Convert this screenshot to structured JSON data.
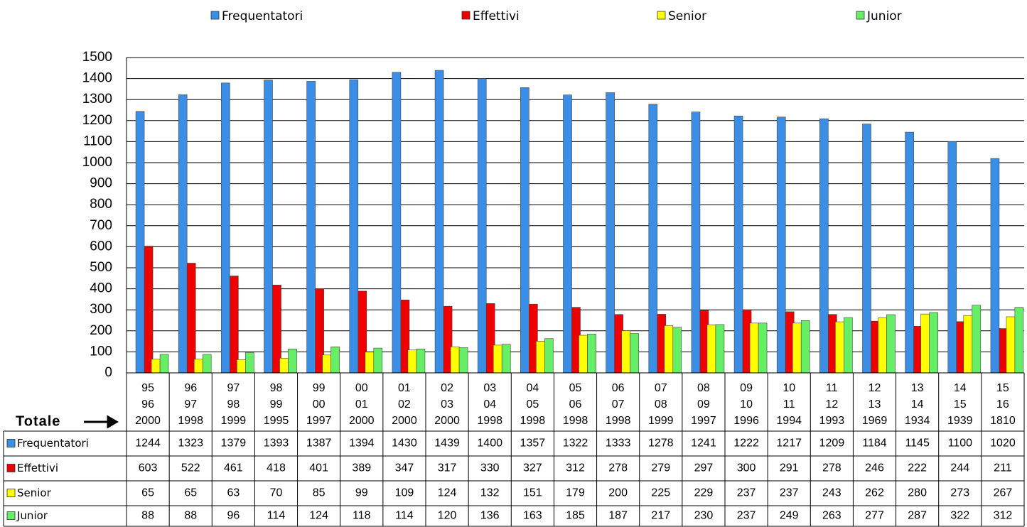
{
  "chart_data": {
    "type": "bar",
    "categories": [
      [
        "95",
        "96"
      ],
      [
        "96",
        "97"
      ],
      [
        "97",
        "98"
      ],
      [
        "98",
        "99"
      ],
      [
        "99",
        "00"
      ],
      [
        "00",
        "01"
      ],
      [
        "01",
        "02"
      ],
      [
        "02",
        "03"
      ],
      [
        "03",
        "04"
      ],
      [
        "04",
        "05"
      ],
      [
        "05",
        "06"
      ],
      [
        "06",
        "07"
      ],
      [
        "07",
        "08"
      ],
      [
        "08",
        "09"
      ],
      [
        "09",
        "10"
      ],
      [
        "10",
        "11"
      ],
      [
        "11",
        "12"
      ],
      [
        "12",
        "13"
      ],
      [
        "13",
        "14"
      ],
      [
        "14",
        "15"
      ],
      [
        "15",
        "16"
      ]
    ],
    "totals_label": "Totale",
    "totals": [
      2000,
      1998,
      1999,
      1995,
      1997,
      2000,
      2000,
      2000,
      1998,
      1998,
      1998,
      1998,
      1999,
      1997,
      1996,
      1994,
      1993,
      1969,
      1934,
      1939,
      1810
    ],
    "series": [
      {
        "name": "Frequentatori",
        "color": "#3a8ee6",
        "values": [
          1244,
          1323,
          1379,
          1393,
          1387,
          1394,
          1430,
          1439,
          1400,
          1357,
          1322,
          1333,
          1278,
          1241,
          1222,
          1217,
          1209,
          1184,
          1145,
          1100,
          1020
        ]
      },
      {
        "name": "Effettivi",
        "color": "#ee0000",
        "values": [
          603,
          522,
          461,
          418,
          401,
          389,
          347,
          317,
          330,
          327,
          312,
          278,
          279,
          297,
          300,
          291,
          278,
          246,
          222,
          244,
          211
        ]
      },
      {
        "name": "Senior",
        "color": "#ffff00",
        "values": [
          65,
          65,
          63,
          70,
          85,
          99,
          109,
          124,
          132,
          151,
          179,
          200,
          225,
          229,
          237,
          237,
          243,
          262,
          280,
          273,
          267
        ]
      },
      {
        "name": "Junior",
        "color": "#66ee66",
        "values": [
          88,
          88,
          96,
          114,
          124,
          118,
          114,
          120,
          136,
          163,
          185,
          187,
          217,
          230,
          237,
          249,
          263,
          277,
          287,
          322,
          312
        ]
      }
    ],
    "ylim": [
      0,
      1500
    ],
    "yticks": [
      0,
      100,
      200,
      300,
      400,
      500,
      600,
      700,
      800,
      900,
      1000,
      1100,
      1200,
      1300,
      1400,
      1500
    ],
    "grid": true
  }
}
